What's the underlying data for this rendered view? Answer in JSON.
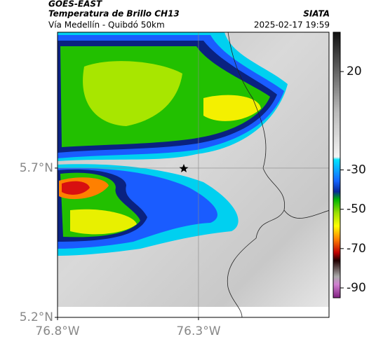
{
  "header": {
    "title": "GOES-EAST",
    "subtitle": "Temperatura de Brillo CH13",
    "route": "Vía Medellín - Quibdó 50km",
    "source": "SIATA",
    "timestamp": "2025-02-17 19:59"
  },
  "map": {
    "xlim": [
      -76.8,
      -75.837
    ],
    "ylim": [
      5.2,
      6.155
    ],
    "xticks": [
      {
        "value": -76.8,
        "label": "76.8°W"
      },
      {
        "value": -76.3,
        "label": "76.3°W"
      }
    ],
    "yticks": [
      {
        "value": 5.2,
        "label": "5.2°N"
      },
      {
        "value": 5.7,
        "label": "5.7°N"
      }
    ],
    "grid": true
  },
  "colorbar": {
    "lim": [
      -95,
      40
    ],
    "ticks": [
      20,
      -30,
      -50,
      -70,
      -90
    ]
  }
}
